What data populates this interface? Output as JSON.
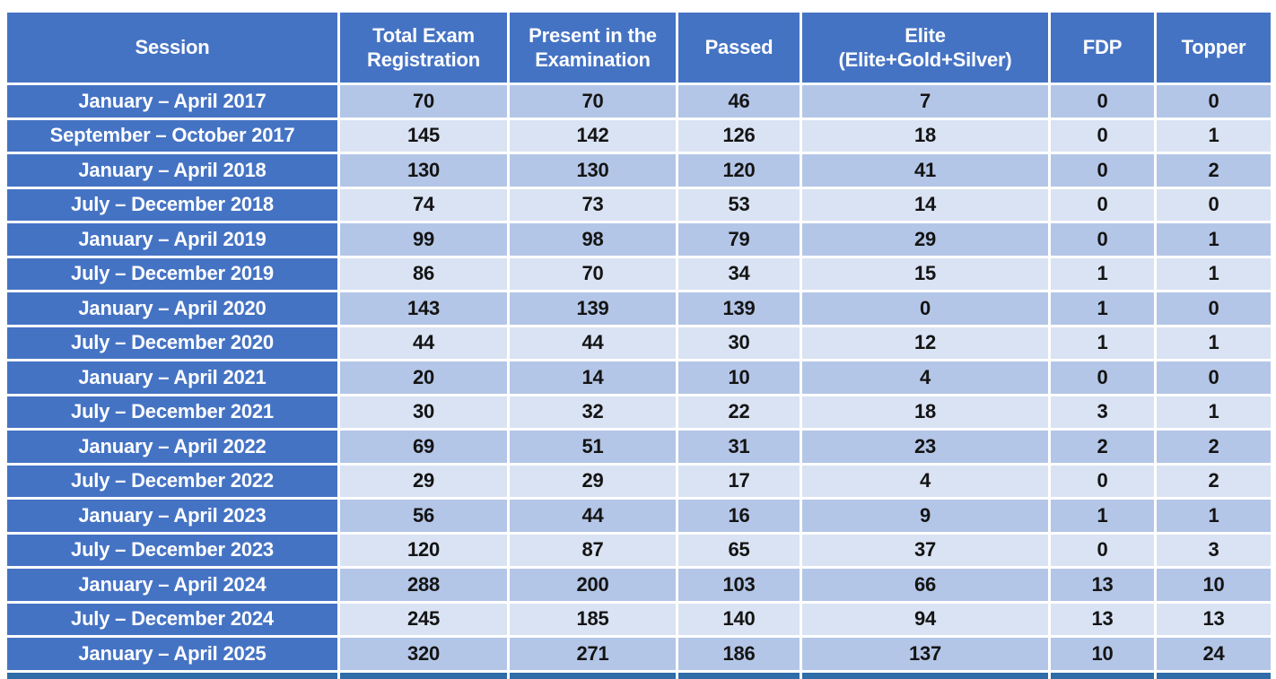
{
  "colors": {
    "header_bg": "#4573C4",
    "session_column_bg": "#4573C4",
    "row_dark_bg": "#B4C6E7",
    "row_light_bg": "#DAE3F3",
    "partial_footer_bg": "#2E6DA8",
    "header_text": "#FFFFFF",
    "cell_text": "#141414"
  },
  "chart_data": {
    "type": "table",
    "columns": [
      "Session",
      "Total Exam\nRegistration",
      "Present in the\nExamination",
      "Passed",
      "Elite\n(Elite+Gold+Silver)",
      "FDP",
      "Topper"
    ],
    "rows": [
      {
        "session": "January – April 2017",
        "values": [
          70,
          70,
          46,
          7,
          0,
          0
        ]
      },
      {
        "session": "September – October 2017",
        "values": [
          145,
          142,
          126,
          18,
          0,
          1
        ]
      },
      {
        "session": "January – April 2018",
        "values": [
          130,
          130,
          120,
          41,
          0,
          2
        ]
      },
      {
        "session": "July – December 2018",
        "values": [
          74,
          73,
          53,
          14,
          0,
          0
        ]
      },
      {
        "session": "January – April 2019",
        "values": [
          99,
          98,
          79,
          29,
          0,
          1
        ]
      },
      {
        "session": "July – December 2019",
        "values": [
          86,
          70,
          34,
          15,
          1,
          1
        ]
      },
      {
        "session": "January – April 2020",
        "values": [
          143,
          139,
          139,
          0,
          1,
          0
        ]
      },
      {
        "session": "July – December 2020",
        "values": [
          44,
          44,
          30,
          12,
          1,
          1
        ]
      },
      {
        "session": "January – April 2021",
        "values": [
          20,
          14,
          10,
          4,
          0,
          0
        ]
      },
      {
        "session": "July – December 2021",
        "values": [
          30,
          32,
          22,
          18,
          3,
          1
        ]
      },
      {
        "session": "January – April 2022",
        "values": [
          69,
          51,
          31,
          23,
          2,
          2
        ]
      },
      {
        "session": "July – December 2022",
        "values": [
          29,
          29,
          17,
          4,
          0,
          2
        ]
      },
      {
        "session": "January – April 2023",
        "values": [
          56,
          44,
          16,
          9,
          1,
          1
        ]
      },
      {
        "session": "July – December 2023",
        "values": [
          120,
          87,
          65,
          37,
          0,
          3
        ]
      },
      {
        "session": "January – April 2024",
        "values": [
          288,
          200,
          103,
          66,
          13,
          10
        ]
      },
      {
        "session": "July – December 2024",
        "values": [
          245,
          185,
          140,
          94,
          13,
          13
        ]
      },
      {
        "session": "January – April 2025",
        "values": [
          320,
          271,
          186,
          137,
          10,
          24
        ]
      }
    ],
    "partial_footer_row": {
      "visible": true,
      "text": ""
    }
  }
}
